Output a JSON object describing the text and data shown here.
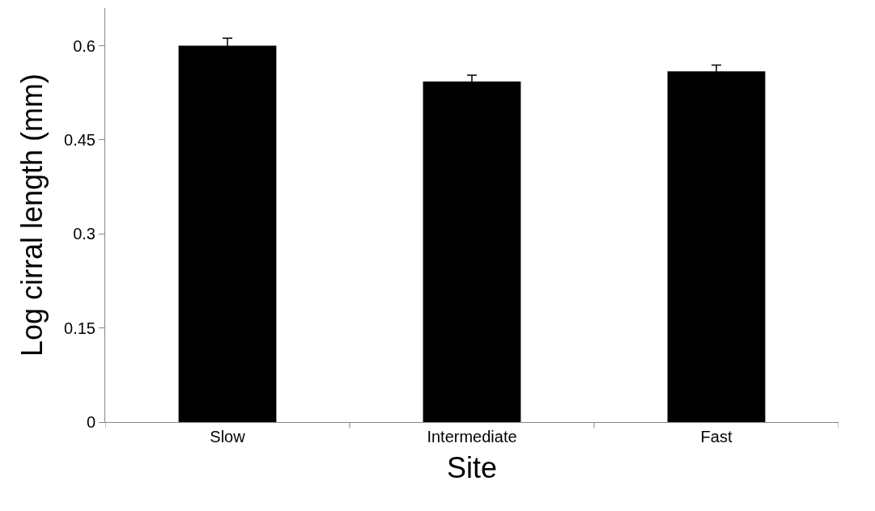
{
  "chart_data": {
    "type": "bar",
    "xlabel": "Site",
    "ylabel": "Log cirral length (mm)",
    "categories": [
      "Slow",
      "Intermediate",
      "Fast"
    ],
    "values": [
      0.6,
      0.543,
      0.559
    ],
    "errors": [
      0.012,
      0.01,
      0.01
    ],
    "color": "#000000",
    "ylim": [
      0,
      0.66
    ],
    "yticks": [
      0,
      0.15,
      0.3,
      0.45,
      0.6
    ]
  }
}
